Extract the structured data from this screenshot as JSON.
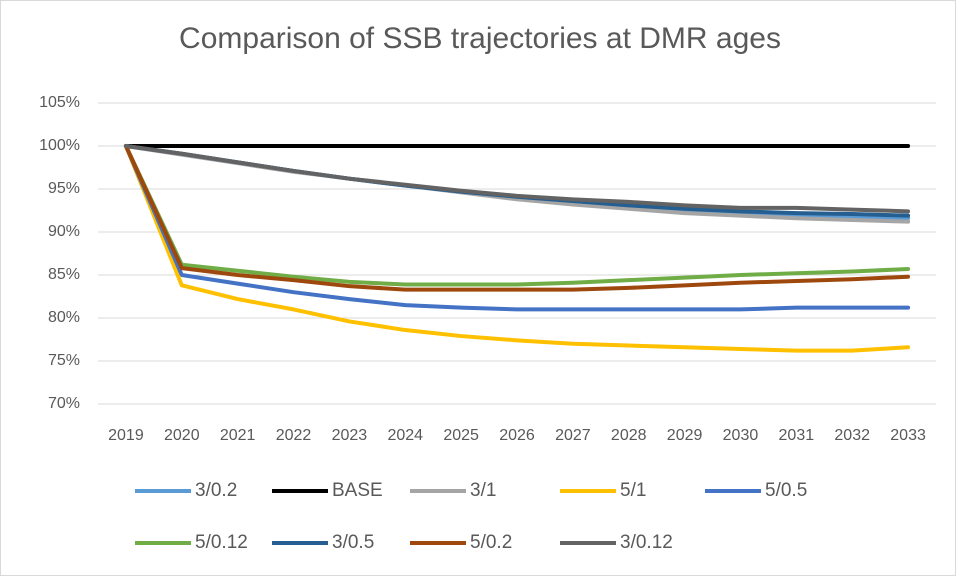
{
  "chart_data": {
    "type": "line",
    "title": "Comparison of SSB trajectories at DMR ages",
    "categories": [
      "2019",
      "2020",
      "2021",
      "2022",
      "2023",
      "2024",
      "2025",
      "2026",
      "2027",
      "2028",
      "2029",
      "2030",
      "2031",
      "2032",
      "2033"
    ],
    "ylim": [
      70,
      105
    ],
    "yticks": [
      {
        "value": 70,
        "label": "70%"
      },
      {
        "value": 75,
        "label": "75%"
      },
      {
        "value": 80,
        "label": "80%"
      },
      {
        "value": 85,
        "label": "85%"
      },
      {
        "value": 90,
        "label": "90%"
      },
      {
        "value": 95,
        "label": "95%"
      },
      {
        "value": 100,
        "label": "100%"
      },
      {
        "value": 105,
        "label": "105%"
      }
    ],
    "grid": true,
    "legend": "bottom",
    "series": [
      {
        "name": "3/0.2",
        "color": "#5b9bd5",
        "values": [
          100,
          99.1,
          98.1,
          97.1,
          96.2,
          95.4,
          94.7,
          94.0,
          93.4,
          92.9,
          92.5,
          92.2,
          92.0,
          91.8,
          91.6
        ]
      },
      {
        "name": "BASE",
        "color": "#000000",
        "values": [
          100,
          100,
          100,
          100,
          100,
          100,
          100,
          100,
          100,
          100,
          100,
          100,
          100,
          100,
          100
        ]
      },
      {
        "name": "3/1",
        "color": "#a5a5a5",
        "values": [
          100,
          99,
          98,
          97,
          96.2,
          95.4,
          94.6,
          93.8,
          93.2,
          92.7,
          92.2,
          91.9,
          91.6,
          91.4,
          91.2
        ]
      },
      {
        "name": "5/1",
        "color": "#ffc000",
        "values": [
          100,
          83.8,
          82.2,
          81,
          79.6,
          78.6,
          77.9,
          77.4,
          77,
          76.8,
          76.6,
          76.4,
          76.2,
          76.2,
          76.6
        ]
      },
      {
        "name": "5/0.5",
        "color": "#4472c4",
        "values": [
          100,
          85,
          84,
          83,
          82.2,
          81.5,
          81.2,
          81,
          81,
          81,
          81,
          81,
          81.2,
          81.2,
          81.2
        ]
      },
      {
        "name": "5/0.12",
        "color": "#70ad47",
        "values": [
          100,
          86.2,
          85.5,
          84.8,
          84.2,
          83.9,
          83.9,
          83.9,
          84.1,
          84.4,
          84.7,
          85,
          85.2,
          85.4,
          85.7
        ]
      },
      {
        "name": "3/0.5",
        "color": "#255e91",
        "values": [
          100,
          99.1,
          98.1,
          97.1,
          96.2,
          95.4,
          94.7,
          94.1,
          93.6,
          93.1,
          92.7,
          92.4,
          92.2,
          92.1,
          91.9
        ]
      },
      {
        "name": "5/0.2",
        "color": "#9e480e",
        "values": [
          100,
          85.8,
          85,
          84.4,
          83.7,
          83.3,
          83.3,
          83.3,
          83.3,
          83.5,
          83.8,
          84.1,
          84.3,
          84.5,
          84.8
        ]
      },
      {
        "name": "3/0.12",
        "color": "#636363",
        "values": [
          100,
          99.1,
          98.1,
          97.1,
          96.2,
          95.5,
          94.8,
          94.2,
          93.8,
          93.5,
          93.1,
          92.8,
          92.8,
          92.6,
          92.4
        ]
      }
    ]
  }
}
